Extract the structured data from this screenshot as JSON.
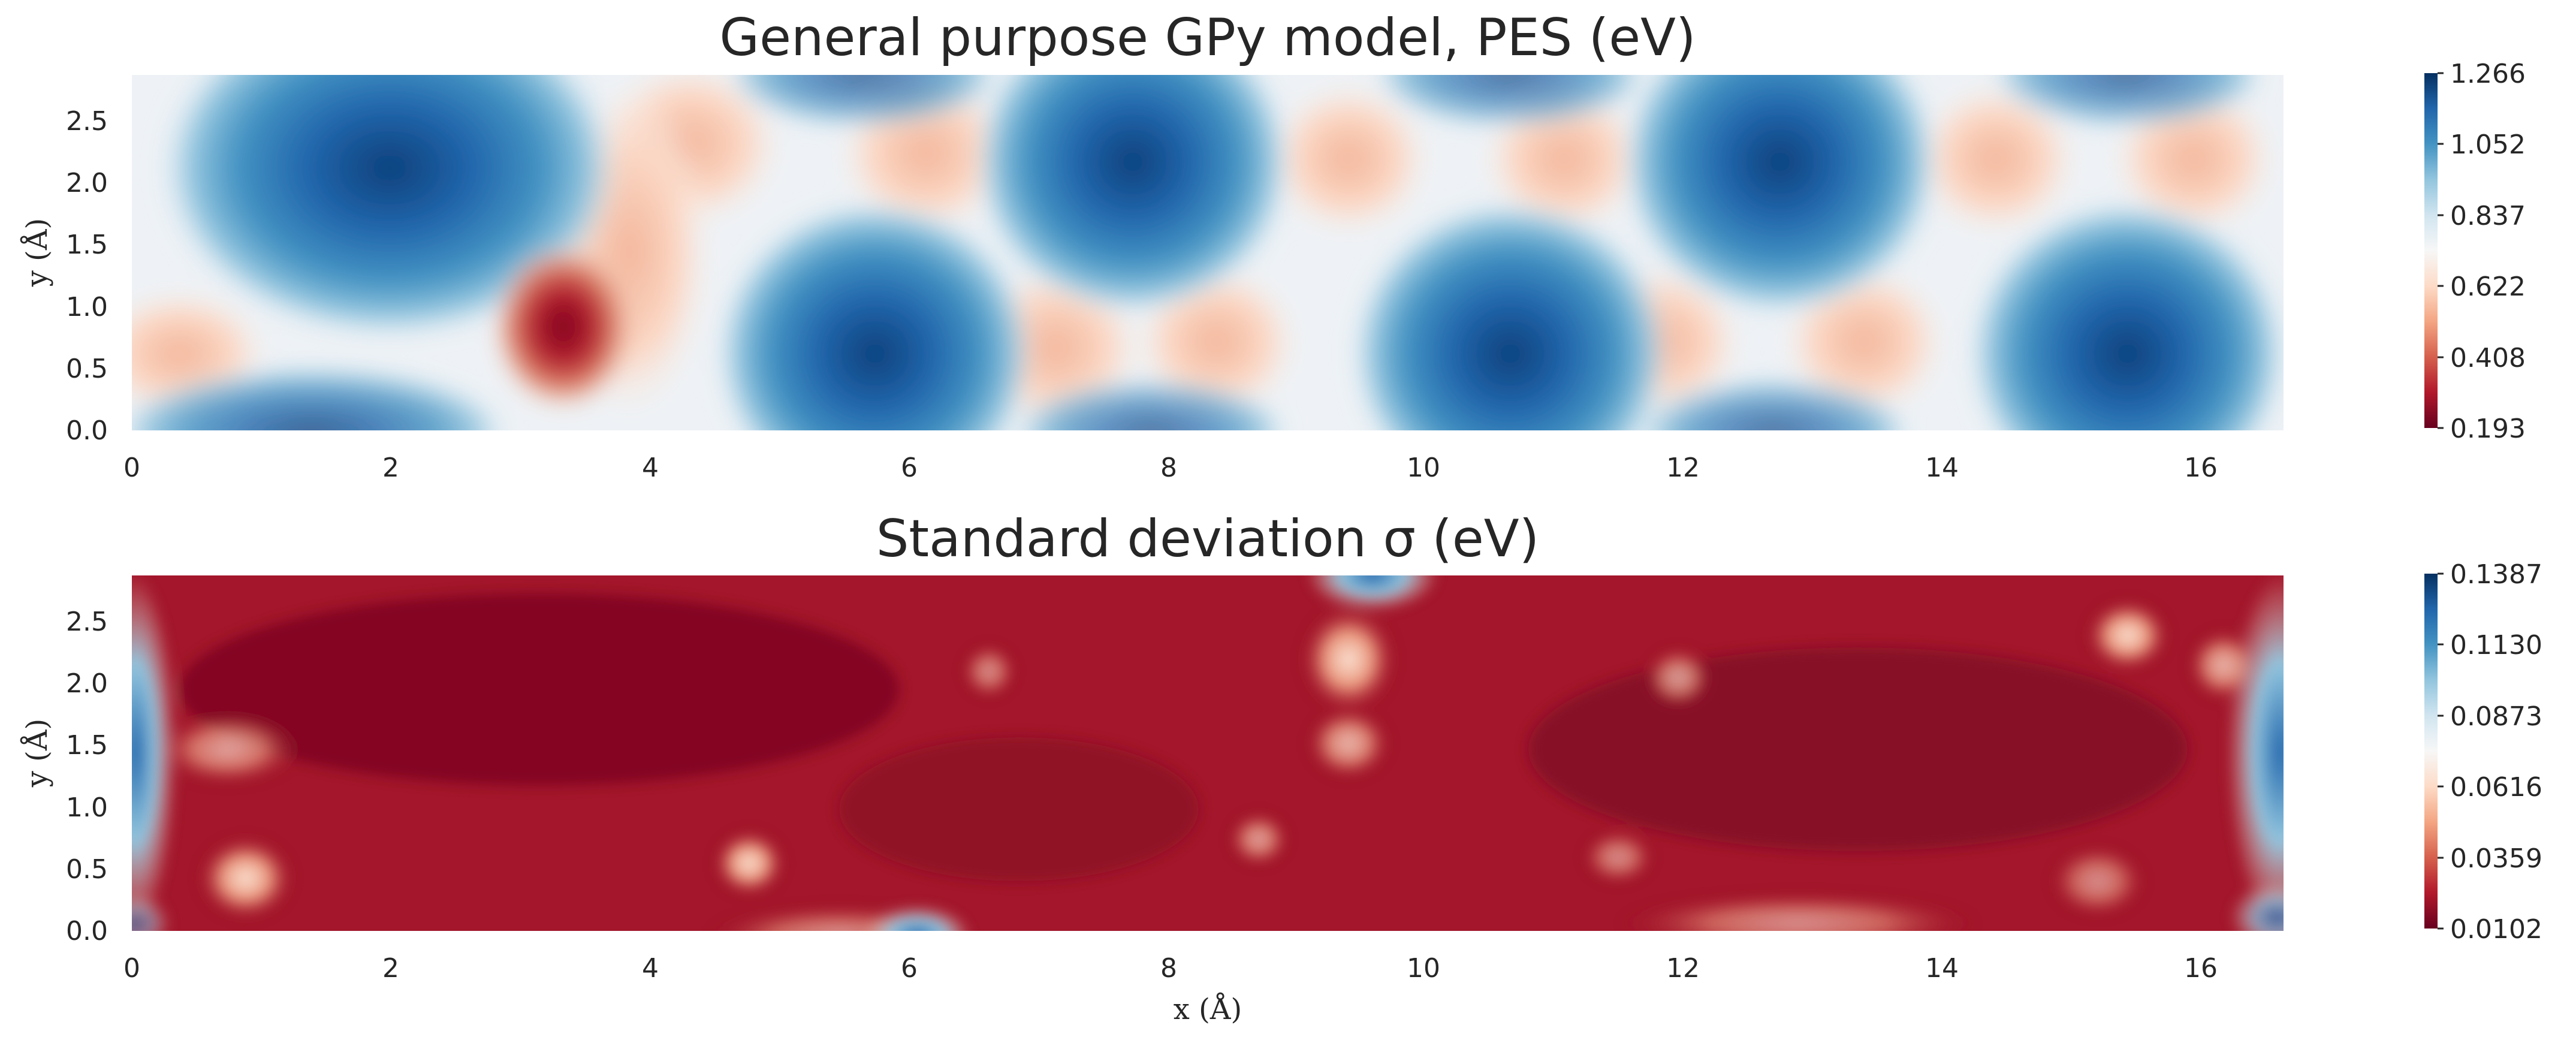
{
  "chart_data": [
    {
      "type": "heatmap",
      "title": "General purpose GPy model, PES (eV)",
      "xlabel": "",
      "ylabel": "y (Å)",
      "xlim": [
        0,
        16.6
      ],
      "ylim": [
        0,
        2.87
      ],
      "xticks": [
        "0",
        "2",
        "4",
        "6",
        "8",
        "10",
        "12",
        "14",
        "16"
      ],
      "yticks": [
        "0.0",
        "0.5",
        "1.0",
        "1.5",
        "2.0",
        "2.5"
      ],
      "colormap": "RdBu",
      "colorbar": {
        "min": 0.193,
        "max": 1.266,
        "ticks": [
          "0.193",
          "0.408",
          "0.622",
          "0.837",
          "1.052",
          "1.266"
        ]
      },
      "features": {
        "minima_high_energy_wells": [
          {
            "x": 2.0,
            "y": 2.1,
            "value": 1.266
          },
          {
            "x": 5.3,
            "y": 0.7,
            "value": 1.05
          },
          {
            "x": 7.7,
            "y": 2.15,
            "value": 1.08
          },
          {
            "x": 10.3,
            "y": 0.75,
            "value": 1.08
          },
          {
            "x": 12.7,
            "y": 2.15,
            "value": 1.08
          },
          {
            "x": 15.2,
            "y": 0.75,
            "value": 1.1
          }
        ],
        "low_value_spot": {
          "x": 3.4,
          "y": 0.8,
          "value": 0.193
        },
        "grid": false
      }
    },
    {
      "type": "heatmap",
      "title": "Standard deviation σ (eV)",
      "xlabel": "x (Å)",
      "ylabel": "y (Å)",
      "xlim": [
        0,
        16.6
      ],
      "ylim": [
        0,
        2.87
      ],
      "xticks": [
        "0",
        "2",
        "4",
        "6",
        "8",
        "10",
        "12",
        "14",
        "16"
      ],
      "yticks": [
        "0.0",
        "0.5",
        "1.0",
        "1.5",
        "2.0",
        "2.5"
      ],
      "colormap": "RdBu",
      "colorbar": {
        "min": 0.0102,
        "max": 0.1387,
        "ticks": [
          "0.0102",
          "0.0359",
          "0.0616",
          "0.0873",
          "0.1130",
          "0.1387"
        ]
      },
      "features": {
        "high_uncertainty_edges": [
          "left edge x≈0",
          "right edge x≈16.6",
          "bottom near x≈6",
          "top near x≈9.5"
        ],
        "grid": false
      }
    }
  ]
}
